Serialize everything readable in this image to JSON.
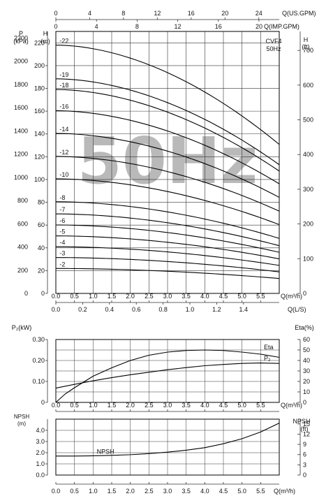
{
  "colors": {
    "grid": "#333333",
    "curve": "#000000",
    "watermark": "#b9b9b9",
    "background": "#ffffff"
  },
  "chart_data": [
    {
      "type": "line",
      "id": "head",
      "model": "CVF4",
      "frequency": "50Hz",
      "watermark": "50Hz",
      "xlabel": "Q(m³/h)",
      "xlim": [
        0,
        6
      ],
      "xticks": [
        "0.0",
        "0.5",
        "1.0",
        "1.5",
        "2.0",
        "2.5",
        "3.0",
        "3.5",
        "4.0",
        "4.5",
        "5.0",
        "5.5"
      ],
      "xlabel_ls": "Q(L/S)",
      "xticks_ls": [
        0,
        0.2,
        0.4,
        0.6,
        0.8,
        1.0,
        1.2,
        1.4
      ],
      "xlabel_usgpm": "Q(US.GPM)",
      "xticks_usgpm": [
        0,
        4,
        8,
        12,
        16,
        20,
        24
      ],
      "xlabel_impgpm": "Q(IMP.GPM)",
      "xticks_impgpm": [
        0,
        4,
        8,
        12,
        16,
        20
      ],
      "ylabel": "H (m)",
      "ylim": [
        0,
        230
      ],
      "yticks": [
        0,
        20,
        40,
        60,
        80,
        100,
        120,
        140,
        160,
        180,
        200,
        220
      ],
      "ylabel_kpa_top": "P",
      "ylabel_kpa_unit": "(kPa)",
      "yticks_kpa": [
        0,
        200,
        400,
        600,
        800,
        1000,
        1200,
        1400,
        1600,
        1800,
        2000,
        2200
      ],
      "ylabel_ft_top": "H",
      "ylabel_ft_unit": "(ft)",
      "yticks_ft": [
        0,
        100,
        200,
        300,
        400,
        500,
        600,
        700
      ],
      "series": [
        {
          "name": "-2",
          "x": [
            0,
            6
          ],
          "values": [
            21.9,
            13.1
          ]
        },
        {
          "name": "-3",
          "x": [
            0,
            6
          ],
          "values": [
            31.5,
            18.9
          ]
        },
        {
          "name": "-4",
          "x": [
            0,
            6
          ],
          "values": [
            41.0,
            24.6
          ]
        },
        {
          "name": "-5",
          "x": [
            0,
            6
          ],
          "values": [
            50.5,
            30.3
          ]
        },
        {
          "name": "-6",
          "x": [
            0,
            6
          ],
          "values": [
            60.1,
            36.1
          ]
        },
        {
          "name": "-7",
          "x": [
            0,
            6
          ],
          "values": [
            69.8,
            41.9
          ]
        },
        {
          "name": "-8",
          "x": [
            0,
            6
          ],
          "values": [
            80.5,
            48.3
          ]
        },
        {
          "name": "-10",
          "x": [
            0,
            6
          ],
          "values": [
            100.6,
            60.4
          ]
        },
        {
          "name": "-12",
          "x": [
            0,
            6
          ],
          "values": [
            120.3,
            72.2
          ]
        },
        {
          "name": "-14",
          "x": [
            0,
            6
          ],
          "values": [
            140.5,
            84.3
          ]
        },
        {
          "name": "-16",
          "x": [
            0,
            6
          ],
          "values": [
            160.4,
            96.2
          ]
        },
        {
          "name": "-18",
          "x": [
            0,
            6
          ],
          "values": [
            179.0,
            107.4
          ]
        },
        {
          "name": "-19",
          "x": [
            0,
            6
          ],
          "values": [
            188.4,
            113.0
          ]
        },
        {
          "name": "-22",
          "x": [
            0,
            6
          ],
          "values": [
            218.0,
            130.8
          ]
        }
      ]
    },
    {
      "type": "line",
      "id": "power-efficiency",
      "xlabel": "Q(m³/h)",
      "xlim": [
        0,
        6
      ],
      "xticks": [
        "0.0",
        "0.5",
        "1.0",
        "1.5",
        "2.0",
        "2.5",
        "3.0",
        "3.5",
        "4.0",
        "4.5",
        "5.0",
        "5.5"
      ],
      "ylabel": "P₂(kW)",
      "ylim": [
        0,
        0.3
      ],
      "yticks": [
        "0",
        "0.10",
        "0.20",
        "0.30"
      ],
      "ylabel_right": "Eta(%)",
      "ylim_right": [
        0,
        60
      ],
      "yticks_right": [
        0,
        10,
        20,
        30,
        40,
        50,
        60
      ],
      "series": [
        {
          "name": "Eta",
          "axis": "right",
          "x": [
            0,
            0.25,
            0.5,
            1.0,
            1.5,
            2.0,
            2.5,
            3.0,
            3.5,
            4.0,
            4.5,
            5.0,
            5.5,
            6.0
          ],
          "values": [
            0,
            8,
            14,
            25,
            33,
            40,
            45,
            48,
            49.5,
            50,
            49.5,
            48,
            46,
            43
          ]
        },
        {
          "name": "P₂",
          "axis": "left",
          "x": [
            0,
            0.5,
            1.0,
            1.5,
            2.0,
            2.5,
            3.0,
            3.5,
            4.0,
            4.5,
            5.0,
            5.5,
            6.0
          ],
          "values": [
            0.068,
            0.086,
            0.103,
            0.118,
            0.132,
            0.144,
            0.156,
            0.166,
            0.175,
            0.181,
            0.186,
            0.188,
            0.186
          ]
        }
      ]
    },
    {
      "type": "line",
      "id": "npsh",
      "xlabel": "Q(m³/h)",
      "xlim": [
        0,
        6
      ],
      "xticks": [
        "0.0",
        "0.5",
        "1.0",
        "1.5",
        "2.0",
        "2.5",
        "3.0",
        "3.5",
        "4.0",
        "4.5",
        "5.0",
        "5.5"
      ],
      "ylabel_top": "NPSH",
      "ylabel_unit": "(m)",
      "ylim": [
        0,
        5
      ],
      "yticks": [
        "0.0",
        "1.0",
        "2.0",
        "3.0",
        "4.0"
      ],
      "ylabel_right_top": "NPSH",
      "ylabel_right_unit": "(ft)",
      "yticks_right": [
        0,
        3,
        6,
        9,
        12,
        15
      ],
      "series": [
        {
          "name": "NPSH",
          "x": [
            0,
            0.5,
            1.0,
            1.5,
            2.0,
            2.5,
            3.0,
            3.5,
            4.0,
            4.5,
            5.0,
            5.5,
            6.0
          ],
          "values": [
            1.7,
            1.7,
            1.72,
            1.76,
            1.82,
            1.92,
            2.05,
            2.22,
            2.45,
            2.8,
            3.25,
            3.85,
            4.65
          ]
        }
      ]
    }
  ]
}
